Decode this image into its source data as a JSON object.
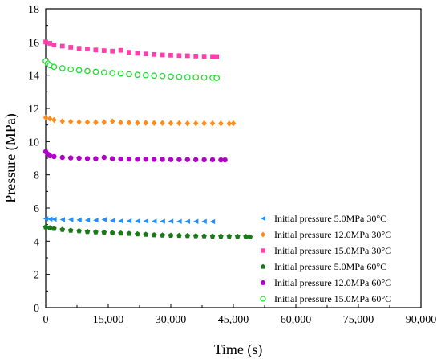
{
  "chart_data": {
    "type": "scatter",
    "xlabel": "Time (s)",
    "ylabel": "Pressure (MPa)",
    "xlim": [
      0,
      90000
    ],
    "ylim": [
      0,
      18
    ],
    "xticks": [
      0,
      15000,
      30000,
      45000,
      60000,
      75000,
      90000
    ],
    "xtick_labels": [
      "0",
      "15,000",
      "30,000",
      "45,000",
      "60,000",
      "75,000",
      "90,000"
    ],
    "yticks": [
      0,
      2,
      4,
      6,
      8,
      10,
      12,
      14,
      16,
      18
    ],
    "ytick_labels": [
      "0",
      "2",
      "4",
      "6",
      "8",
      "10",
      "12",
      "14",
      "16",
      "18"
    ],
    "grid": false,
    "legend_position": "bottom-right",
    "series": [
      {
        "name": "Initial pressure 5.0MPa 30°C",
        "marker": "triangle-left",
        "color": "#1e90ff",
        "x": [
          0,
          1000,
          2000,
          4000,
          6000,
          8000,
          10000,
          12000,
          14000,
          16000,
          18000,
          20000,
          22000,
          24000,
          26000,
          28000,
          30000,
          32000,
          34000,
          36000,
          38000,
          40000
        ],
        "y": [
          5.35,
          5.33,
          5.32,
          5.3,
          5.3,
          5.28,
          5.27,
          5.26,
          5.3,
          5.24,
          5.22,
          5.22,
          5.21,
          5.21,
          5.2,
          5.2,
          5.2,
          5.19,
          5.19,
          5.19,
          5.19,
          5.18
        ]
      },
      {
        "name": "Initial pressure 12.0MPa 30°C",
        "marker": "diamond",
        "color": "#ff8c1a",
        "x": [
          0,
          1000,
          2000,
          4000,
          6000,
          8000,
          10000,
          12000,
          14000,
          16000,
          18000,
          20000,
          22000,
          24000,
          26000,
          28000,
          30000,
          32000,
          34000,
          36000,
          38000,
          40000,
          42000,
          44000,
          45000
        ],
        "y": [
          11.45,
          11.38,
          11.3,
          11.22,
          11.2,
          11.18,
          11.17,
          11.16,
          11.17,
          11.22,
          11.15,
          11.14,
          11.13,
          11.13,
          11.12,
          11.12,
          11.11,
          11.11,
          11.1,
          11.1,
          11.1,
          11.1,
          11.09,
          11.08,
          11.1
        ]
      },
      {
        "name": "Initial pressure 15.0MPa 30°C",
        "marker": "square",
        "color": "#ff3fae",
        "x": [
          0,
          1000,
          2000,
          4000,
          6000,
          8000,
          10000,
          12000,
          14000,
          16000,
          18000,
          20000,
          22000,
          24000,
          26000,
          28000,
          30000,
          32000,
          34000,
          36000,
          38000,
          40000,
          41000
        ],
        "y": [
          16.0,
          15.92,
          15.83,
          15.75,
          15.68,
          15.62,
          15.57,
          15.52,
          15.48,
          15.45,
          15.5,
          15.38,
          15.32,
          15.28,
          15.25,
          15.22,
          15.2,
          15.18,
          15.17,
          15.15,
          15.14,
          15.13,
          15.12
        ]
      },
      {
        "name": "Initial pressure 5.0MPa 60°C",
        "marker": "pentagon",
        "color": "#1a7a1a",
        "x": [
          0,
          1000,
          2000,
          4000,
          6000,
          8000,
          10000,
          12000,
          14000,
          16000,
          18000,
          20000,
          22000,
          24000,
          26000,
          28000,
          30000,
          32000,
          34000,
          36000,
          38000,
          40000,
          42000,
          44000,
          46000,
          48000,
          49000
        ],
        "y": [
          4.85,
          4.8,
          4.76,
          4.7,
          4.65,
          4.62,
          4.58,
          4.55,
          4.53,
          4.5,
          4.48,
          4.46,
          4.43,
          4.41,
          4.38,
          4.36,
          4.35,
          4.34,
          4.33,
          4.32,
          4.31,
          4.3,
          4.3,
          4.3,
          4.29,
          4.28,
          4.25
        ]
      },
      {
        "name": "Initial pressure 12.0MPa 60°C",
        "marker": "circle",
        "color": "#b000c8",
        "x": [
          0,
          500,
          1000,
          2000,
          4000,
          6000,
          8000,
          10000,
          12000,
          14000,
          16000,
          18000,
          20000,
          22000,
          24000,
          26000,
          28000,
          30000,
          32000,
          34000,
          36000,
          38000,
          40000,
          42000,
          43000
        ],
        "y": [
          9.4,
          9.25,
          9.15,
          9.1,
          9.05,
          9.02,
          9.0,
          8.98,
          8.97,
          9.05,
          8.97,
          8.95,
          8.95,
          8.94,
          8.94,
          8.93,
          8.93,
          8.92,
          8.92,
          8.92,
          8.91,
          8.91,
          8.91,
          8.9,
          8.9
        ]
      },
      {
        "name": "Initial pressure 15.0MPa 60°C",
        "marker": "circle-open",
        "color": "#22dd33",
        "x": [
          0,
          500,
          1000,
          2000,
          4000,
          6000,
          8000,
          10000,
          12000,
          14000,
          16000,
          18000,
          20000,
          22000,
          24000,
          26000,
          28000,
          30000,
          32000,
          34000,
          36000,
          38000,
          40000,
          41000
        ],
        "y": [
          14.85,
          14.7,
          14.6,
          14.5,
          14.42,
          14.35,
          14.3,
          14.25,
          14.2,
          14.16,
          14.13,
          14.1,
          14.06,
          14.02,
          14.0,
          13.97,
          13.95,
          13.92,
          13.9,
          13.88,
          13.87,
          13.86,
          13.85,
          13.84
        ]
      }
    ]
  }
}
